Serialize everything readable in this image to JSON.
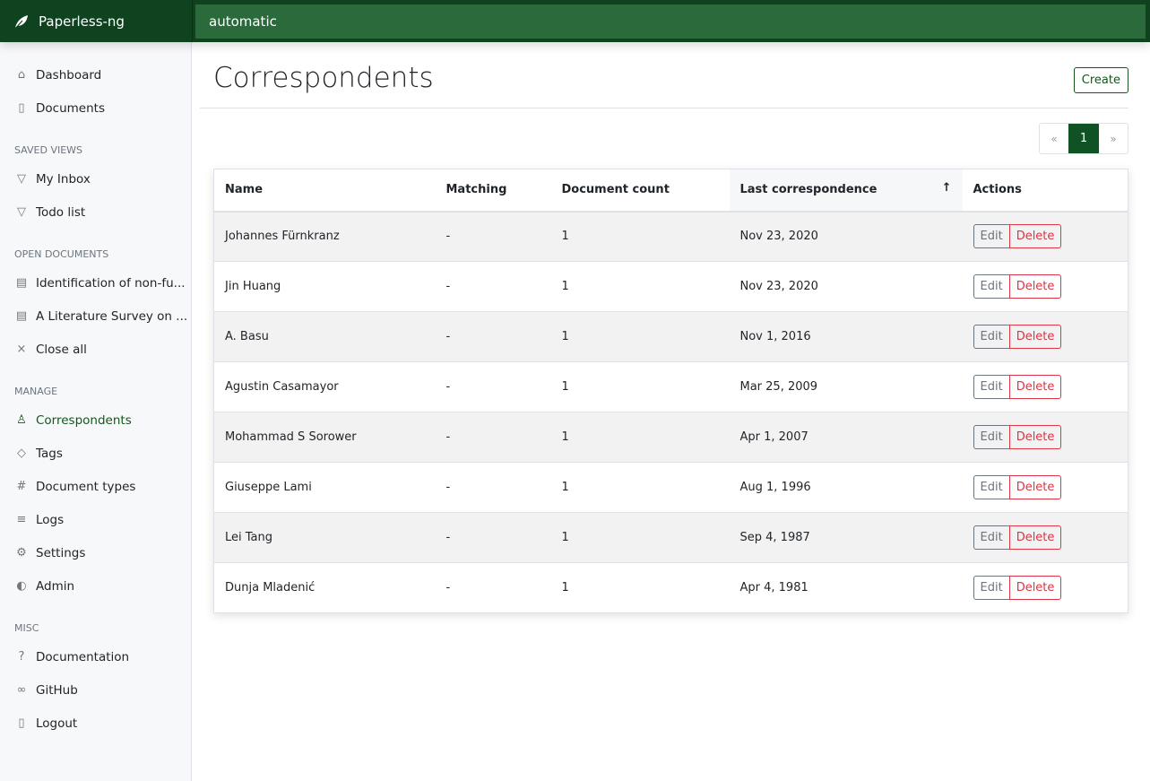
{
  "app": {
    "title": "Paperless-ng",
    "search_value": "automatic"
  },
  "sidebar": {
    "main": [
      {
        "label": "Dashboard",
        "icon": "house-icon"
      },
      {
        "label": "Documents",
        "icon": "documents-icon"
      }
    ],
    "saved_views": {
      "heading": "SAVED VIEWS",
      "items": [
        {
          "label": "My Inbox",
          "icon": "funnel-icon"
        },
        {
          "label": "Todo list",
          "icon": "funnel-icon"
        }
      ]
    },
    "open_documents": {
      "heading": "OPEN DOCUMENTS",
      "items": [
        {
          "label": "Identification of non-fu...",
          "icon": "file-text-icon"
        },
        {
          "label": "A Literature Survey on ...",
          "icon": "file-text-icon"
        },
        {
          "label": "Close all",
          "icon": "x-icon"
        }
      ]
    },
    "manage": {
      "heading": "MANAGE",
      "items": [
        {
          "label": "Correspondents",
          "icon": "person-icon"
        },
        {
          "label": "Tags",
          "icon": "tags-icon"
        },
        {
          "label": "Document types",
          "icon": "hash-icon"
        },
        {
          "label": "Logs",
          "icon": "text-left-icon"
        },
        {
          "label": "Settings",
          "icon": "gear-icon"
        },
        {
          "label": "Admin",
          "icon": "toggles-icon"
        }
      ]
    },
    "misc": {
      "heading": "MISC",
      "items": [
        {
          "label": "Documentation",
          "icon": "question-circle-icon"
        },
        {
          "label": "GitHub",
          "icon": "link-icon"
        },
        {
          "label": "Logout",
          "icon": "door-icon"
        }
      ]
    }
  },
  "page": {
    "title": "Correspondents",
    "create_label": "Create"
  },
  "pagination": {
    "prev": "«",
    "current": "1",
    "next": "»"
  },
  "table": {
    "columns": [
      "Name",
      "Matching",
      "Document count",
      "Last correspondence",
      "Actions"
    ],
    "sort_indicator": "↑",
    "edit_label": "Edit",
    "delete_label": "Delete",
    "rows": [
      {
        "name": "Johannes Fürnkranz",
        "matching": "-",
        "count": "1",
        "last": "Nov 23, 2020"
      },
      {
        "name": "Jin Huang",
        "matching": "-",
        "count": "1",
        "last": "Nov 23, 2020"
      },
      {
        "name": "A. Basu",
        "matching": "-",
        "count": "1",
        "last": "Nov 1, 2016"
      },
      {
        "name": "Agustin Casamayor",
        "matching": "-",
        "count": "1",
        "last": "Mar 25, 2009"
      },
      {
        "name": "Mohammad S Sorower",
        "matching": "-",
        "count": "1",
        "last": "Apr 1, 2007"
      },
      {
        "name": "Giuseppe Lami",
        "matching": "-",
        "count": "1",
        "last": "Aug 1, 1996"
      },
      {
        "name": "Lei Tang",
        "matching": "-",
        "count": "1",
        "last": "Sep 4, 1987"
      },
      {
        "name": "Dunja Mladenić",
        "matching": "-",
        "count": "1",
        "last": "Apr 4, 1981"
      }
    ]
  }
}
